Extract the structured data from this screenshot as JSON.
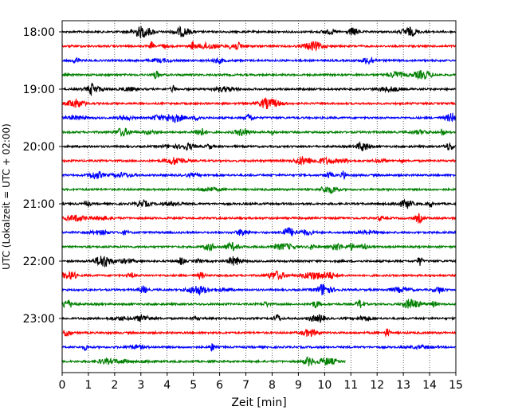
{
  "chart_data": {
    "type": "line",
    "title": "",
    "xlabel": "Zeit  [min]",
    "ylabel": "UTC (Lokalzeit = UTC + 02:00)",
    "xlim": [
      0,
      15
    ],
    "x_ticks": [
      "0",
      "1",
      "2",
      "3",
      "4",
      "5",
      "6",
      "7",
      "8",
      "9",
      "10",
      "11",
      "12",
      "13",
      "14",
      "15"
    ],
    "y_ticks": [
      "18:00",
      "19:00",
      "20:00",
      "21:00",
      "22:00",
      "23:00"
    ],
    "grid": "vertical dotted lines at each minute",
    "row_interval_min": 15,
    "colors": [
      "#000000",
      "#ff0000",
      "#0000ff",
      "#008000"
    ],
    "rows": [
      {
        "start": "18:00",
        "end_min": 15,
        "color": "#000000"
      },
      {
        "start": "18:15",
        "end_min": 15,
        "color": "#ff0000"
      },
      {
        "start": "18:30",
        "end_min": 15,
        "color": "#0000ff"
      },
      {
        "start": "18:45",
        "end_min": 15,
        "color": "#008000"
      },
      {
        "start": "19:00",
        "end_min": 15,
        "color": "#000000"
      },
      {
        "start": "19:15",
        "end_min": 15,
        "color": "#ff0000"
      },
      {
        "start": "19:30",
        "end_min": 15,
        "color": "#0000ff"
      },
      {
        "start": "19:45",
        "end_min": 15,
        "color": "#008000"
      },
      {
        "start": "20:00",
        "end_min": 15,
        "color": "#000000"
      },
      {
        "start": "20:15",
        "end_min": 15,
        "color": "#ff0000"
      },
      {
        "start": "20:30",
        "end_min": 15,
        "color": "#0000ff"
      },
      {
        "start": "20:45",
        "end_min": 15,
        "color": "#008000"
      },
      {
        "start": "21:00",
        "end_min": 15,
        "color": "#000000"
      },
      {
        "start": "21:15",
        "end_min": 15,
        "color": "#ff0000"
      },
      {
        "start": "21:30",
        "end_min": 15,
        "color": "#0000ff"
      },
      {
        "start": "21:45",
        "end_min": 15,
        "color": "#008000"
      },
      {
        "start": "22:00",
        "end_min": 15,
        "color": "#000000"
      },
      {
        "start": "22:15",
        "end_min": 15,
        "color": "#ff0000"
      },
      {
        "start": "22:30",
        "end_min": 15,
        "color": "#0000ff"
      },
      {
        "start": "22:45",
        "end_min": 15,
        "color": "#008000"
      },
      {
        "start": "23:00",
        "end_min": 15,
        "color": "#000000"
      },
      {
        "start": "23:15",
        "end_min": 15,
        "color": "#ff0000"
      },
      {
        "start": "23:30",
        "end_min": 15,
        "color": "#0000ff"
      },
      {
        "start": "23:45",
        "end_min": 10.8,
        "color": "#008000"
      }
    ]
  }
}
